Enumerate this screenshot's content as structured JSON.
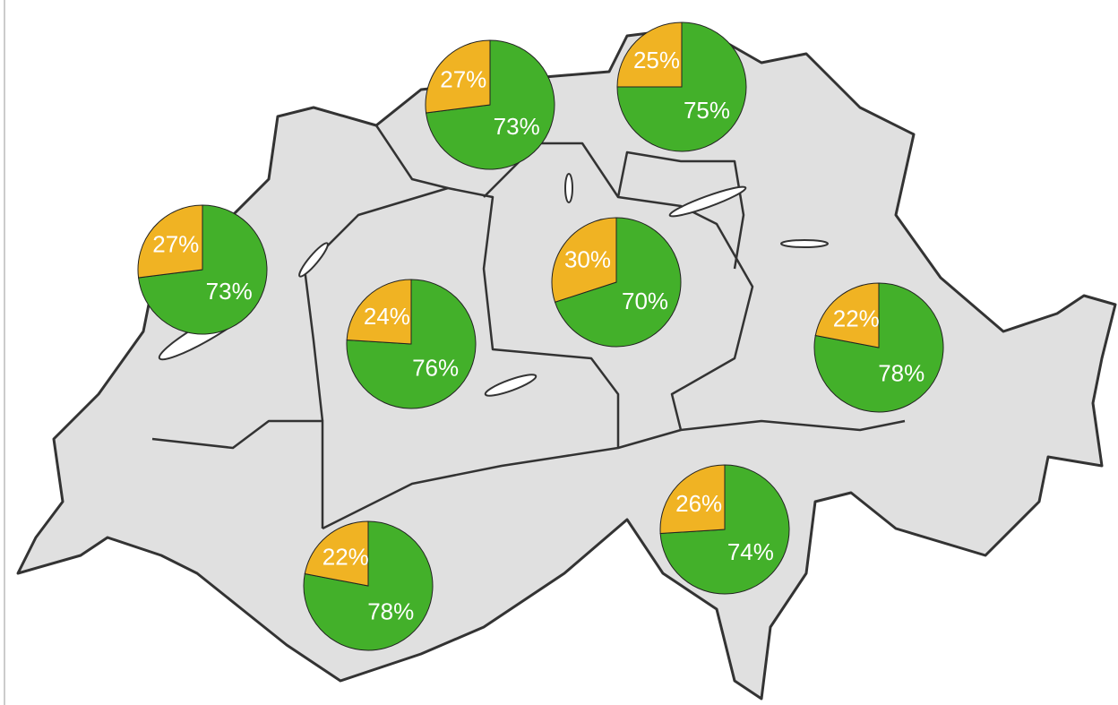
{
  "chart_data": [
    {
      "type": "pie",
      "values": [
        73,
        27
      ],
      "value_labels": [
        "73%",
        "27%"
      ],
      "colors": [
        "#43b02a",
        "#f0b323"
      ]
    },
    {
      "type": "pie",
      "values": [
        75,
        25
      ],
      "value_labels": [
        "75%",
        "25%"
      ],
      "colors": [
        "#43b02a",
        "#f0b323"
      ]
    },
    {
      "type": "pie",
      "values": [
        73,
        27
      ],
      "value_labels": [
        "73%",
        "27%"
      ],
      "colors": [
        "#43b02a",
        "#f0b323"
      ]
    },
    {
      "type": "pie",
      "values": [
        70,
        30
      ],
      "value_labels": [
        "70%",
        "30%"
      ],
      "colors": [
        "#43b02a",
        "#f0b323"
      ]
    },
    {
      "type": "pie",
      "values": [
        76,
        24
      ],
      "value_labels": [
        "76%",
        "24%"
      ],
      "colors": [
        "#43b02a",
        "#f0b323"
      ]
    },
    {
      "type": "pie",
      "values": [
        78,
        22
      ],
      "value_labels": [
        "78%",
        "22%"
      ],
      "colors": [
        "#43b02a",
        "#f0b323"
      ]
    },
    {
      "type": "pie",
      "values": [
        74,
        26
      ],
      "value_labels": [
        "74%",
        "26%"
      ],
      "colors": [
        "#43b02a",
        "#f0b323"
      ]
    },
    {
      "type": "pie",
      "values": [
        78,
        22
      ],
      "value_labels": [
        "78%",
        "22%"
      ],
      "colors": [
        "#43b02a",
        "#f0b323"
      ]
    }
  ]
}
